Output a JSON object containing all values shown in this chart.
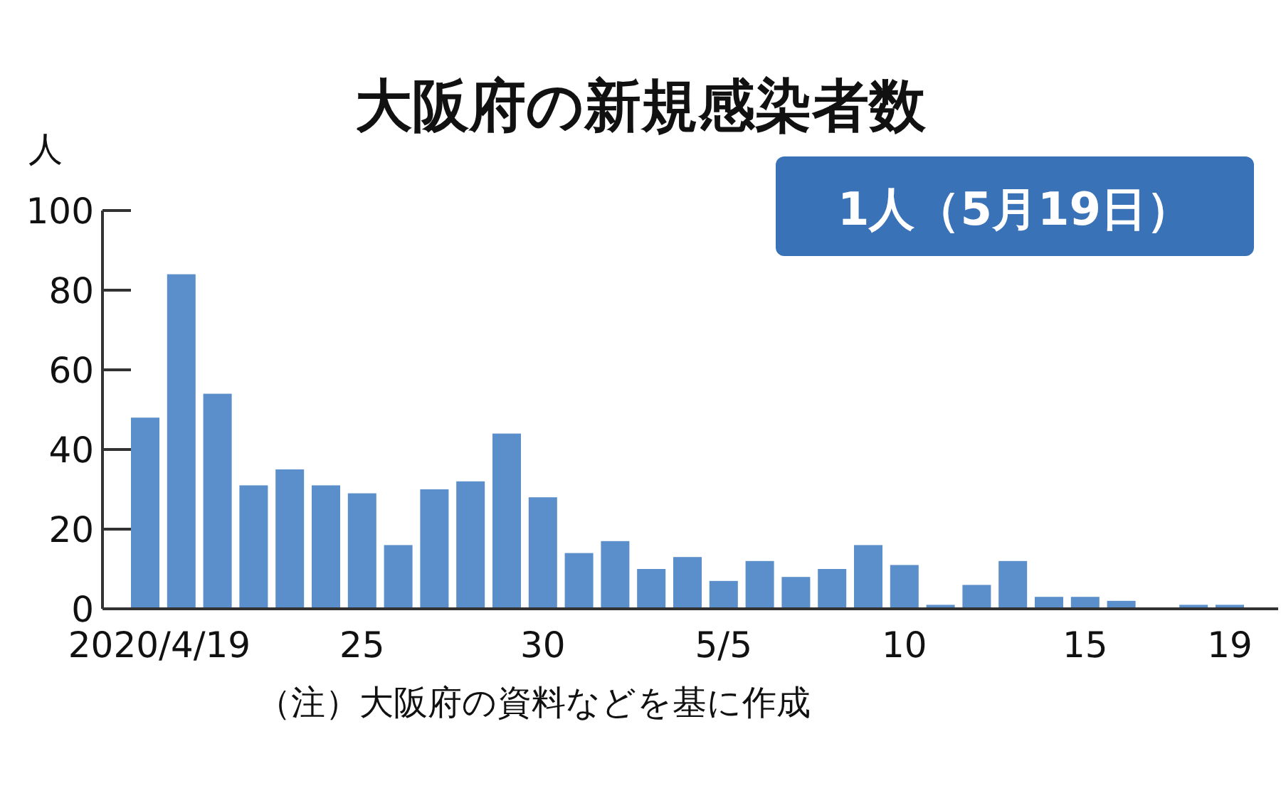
{
  "chart_data": {
    "type": "bar",
    "title": "大阪府の新規感染者数",
    "ylabel": "人",
    "annotations": [
      "1人（5月19日）",
      "（注）大阪府の資料などを基に作成"
    ],
    "categories": [
      "2020/4/19",
      null,
      null,
      null,
      null,
      null,
      "25",
      null,
      null,
      null,
      null,
      "30",
      null,
      null,
      null,
      null,
      "5/5",
      null,
      null,
      null,
      null,
      "10",
      null,
      null,
      null,
      null,
      "15",
      null,
      null,
      null,
      "19"
    ],
    "values": [
      48,
      84,
      54,
      31,
      35,
      31,
      29,
      16,
      30,
      32,
      44,
      28,
      14,
      17,
      10,
      13,
      7,
      12,
      8,
      10,
      16,
      11,
      1,
      6,
      12,
      3,
      3,
      2,
      0,
      1,
      1
    ],
    "color": "#5b8fcb",
    "ylim": [
      0,
      100
    ],
    "yticks": [
      0,
      20,
      40,
      60,
      80,
      100
    ]
  }
}
